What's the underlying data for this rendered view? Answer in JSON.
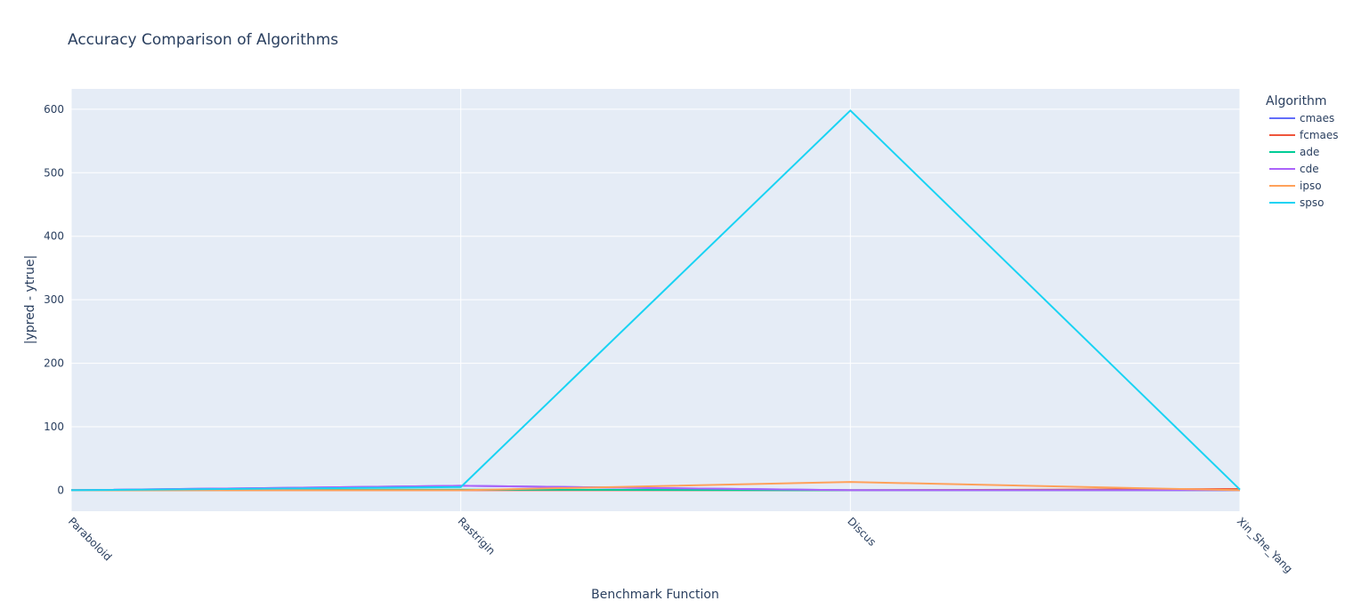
{
  "chart_data": {
    "type": "line",
    "title": "Accuracy Comparison of Algorithms",
    "xlabel": "Benchmark Function",
    "ylabel": "|ypred - ytrue|",
    "categories": [
      "Paraboloid",
      "Rastrigin",
      "Discus",
      "Xin_She_Yang"
    ],
    "ylim": [
      -33,
      632
    ],
    "yticks": [
      0,
      100,
      200,
      300,
      400,
      500,
      600
    ],
    "grid": true,
    "legend": {
      "title": "Algorithm",
      "placement": "right"
    },
    "series": [
      {
        "name": "cmaes",
        "color": "#636efa",
        "values": [
          0,
          7,
          0,
          0
        ]
      },
      {
        "name": "fcmaes",
        "color": "#ef553b",
        "values": [
          0,
          0,
          0,
          2
        ]
      },
      {
        "name": "ade",
        "color": "#00cc96",
        "values": [
          0,
          1,
          0,
          0
        ]
      },
      {
        "name": "cde",
        "color": "#ab63fa",
        "values": [
          0,
          7,
          0,
          0
        ]
      },
      {
        "name": "ipso",
        "color": "#ffa15a",
        "values": [
          0,
          0,
          13,
          0
        ]
      },
      {
        "name": "spso",
        "color": "#19d3f3",
        "values": [
          0,
          5,
          598,
          1
        ]
      }
    ]
  }
}
